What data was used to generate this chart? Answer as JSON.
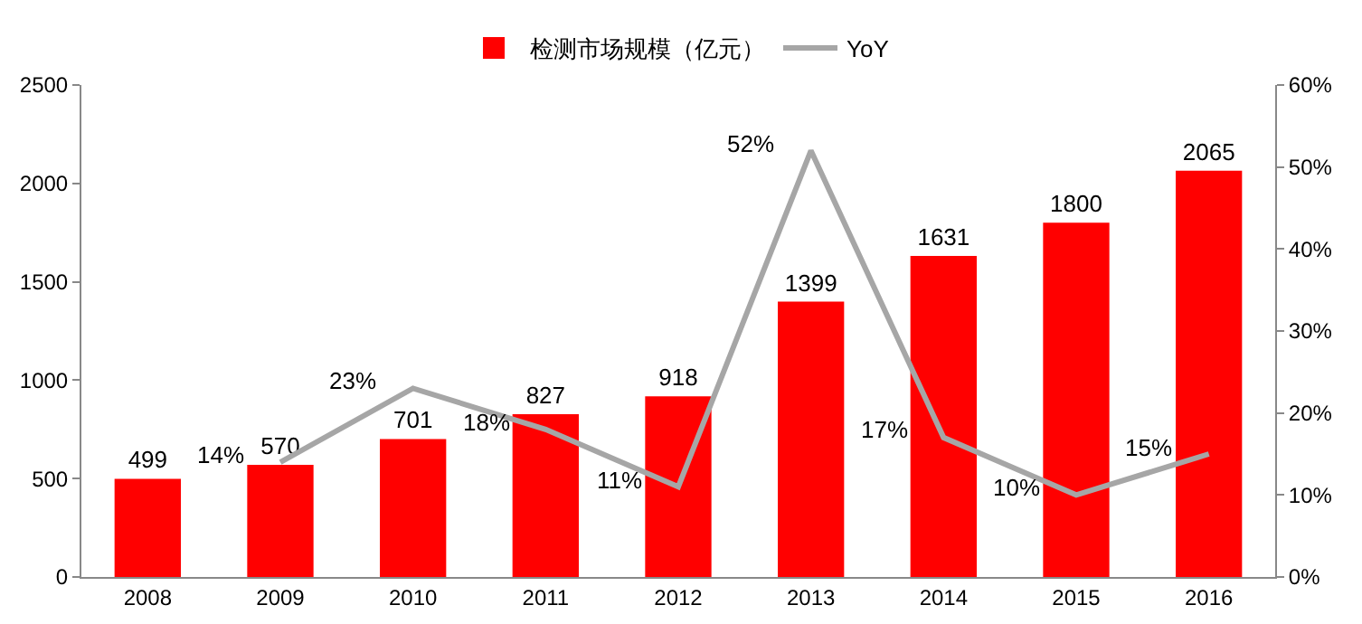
{
  "chart_data": {
    "type": "bar",
    "categories": [
      "2008",
      "2009",
      "2010",
      "2011",
      "2012",
      "2013",
      "2014",
      "2015",
      "2016"
    ],
    "series": [
      {
        "name": "检测市场规模（亿元）",
        "color": "#ff0000",
        "values": [
          499,
          570,
          701,
          827,
          918,
          1399,
          1631,
          1800,
          2065
        ],
        "data_labels": true
      },
      {
        "name": "YoY",
        "type": "line",
        "axis": "y2",
        "color": "#a6a6a6",
        "values": [
          null,
          14,
          23,
          18,
          11,
          52,
          17,
          10,
          15
        ],
        "value_labels": [
          null,
          "14%",
          "23%",
          "18%",
          "11%",
          "52%",
          "17%",
          "10%",
          "15%"
        ]
      }
    ],
    "ylim": [
      0,
      2500
    ],
    "yticks": [
      0,
      500,
      1000,
      1500,
      2000,
      2500
    ],
    "y2lim": [
      0,
      60
    ],
    "y2ticks": [
      {
        "value": 0,
        "label": "0%"
      },
      {
        "value": 10,
        "label": "10%"
      },
      {
        "value": 20,
        "label": "20%"
      },
      {
        "value": 30,
        "label": "30%"
      },
      {
        "value": 40,
        "label": "40%"
      },
      {
        "value": 50,
        "label": "50%"
      },
      {
        "value": 60,
        "label": "60%"
      }
    ],
    "grid": false,
    "legend": "top",
    "marker": "none",
    "line_style": "solid"
  }
}
